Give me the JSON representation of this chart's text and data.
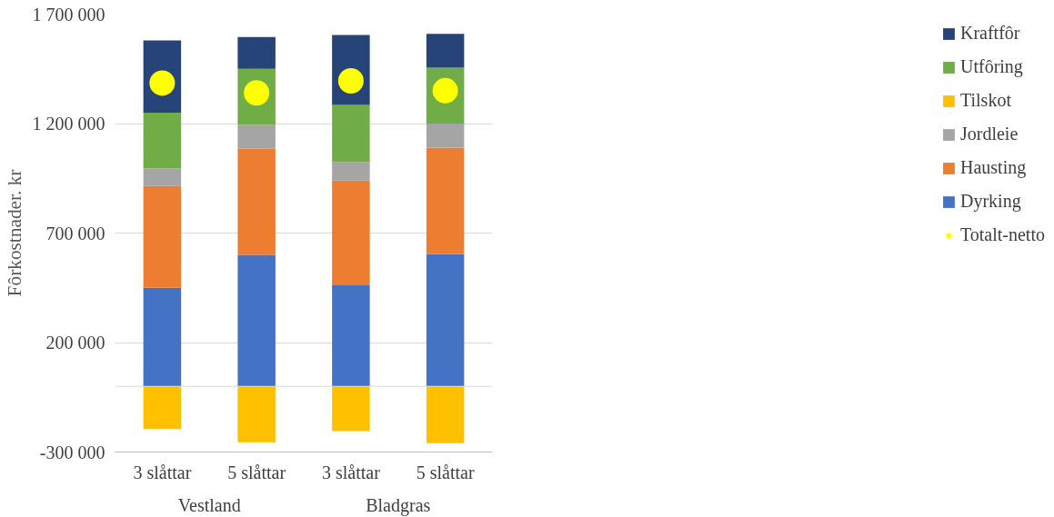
{
  "chart_data": {
    "type": "bar",
    "stacked": true,
    "ylabel": "Fôrkostnader. kr",
    "categories": [
      "3 slåttar",
      "5 slåttar",
      "3 slåttar",
      "5 slåttar"
    ],
    "annotations": [
      "Vestland",
      "Bladgras"
    ],
    "series": [
      {
        "name": "Dyrking",
        "color": "#4472c4",
        "values": [
          450000,
          600000,
          465000,
          605000
        ]
      },
      {
        "name": "Hausting",
        "color": "#ed7d31",
        "values": [
          465000,
          485000,
          475000,
          485000
        ]
      },
      {
        "name": "Jordleie",
        "color": "#a5a5a5",
        "values": [
          80000,
          110000,
          85000,
          110000
        ]
      },
      {
        "name": "Tilskot",
        "color": "#ffc000",
        "values": [
          -195000,
          -255000,
          -205000,
          -260000
        ]
      },
      {
        "name": "Utfôring",
        "color": "#70ad47",
        "values": [
          255000,
          255000,
          260000,
          255000
        ]
      },
      {
        "name": "Kraftfôr",
        "color": "#264478",
        "values": [
          330000,
          145000,
          320000,
          155000
        ]
      },
      {
        "name": "Totalt-netto",
        "type": "scatter",
        "marker": "circle",
        "color": "#ffff00",
        "values": [
          1385000,
          1340000,
          1395000,
          1350000
        ]
      }
    ],
    "ylim": [
      -300000,
      1700000
    ],
    "yticks": [
      {
        "value": -300000,
        "label": "-300 000"
      },
      {
        "value": 200000,
        "label": "200 000"
      },
      {
        "value": 700000,
        "label": "700 000"
      },
      {
        "value": 1200000,
        "label": "1 200 000"
      },
      {
        "value": 1700000,
        "label": "1 700 000"
      }
    ],
    "grid": "y",
    "legend": "right"
  }
}
